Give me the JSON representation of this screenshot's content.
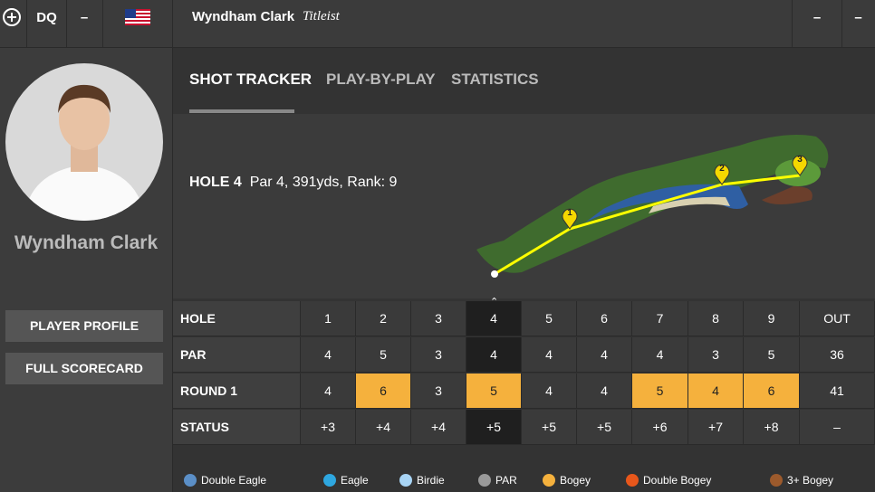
{
  "top_bar": {
    "position": "DQ",
    "score": "–",
    "player": "Wyndham Clark",
    "sponsor": "Titleist",
    "right_1": "–",
    "right_2": "–"
  },
  "player": {
    "name": "Wyndham Clark",
    "buttons": [
      "PLAYER PROFILE",
      "FULL SCORECARD"
    ]
  },
  "tabs": [
    "SHOT TRACKER",
    "PLAY-BY-PLAY",
    "STATISTICS"
  ],
  "hole": {
    "label": "HOLE 4",
    "info": "Par 4, 391yds, Rank: 9",
    "shots": [
      "1",
      "2",
      "3"
    ]
  },
  "scorecard": {
    "current_hole": "4",
    "rows": [
      [
        "HOLE",
        "1",
        "2",
        "3",
        "4",
        "5",
        "6",
        "7",
        "8",
        "9",
        "OUT"
      ],
      [
        "PAR",
        "4",
        "5",
        "3",
        "4",
        "4",
        "4",
        "4",
        "3",
        "5",
        "36"
      ],
      [
        "ROUND 1",
        "4",
        "6",
        "3",
        "5",
        "4",
        "4",
        "5",
        "4",
        "6",
        "41"
      ],
      [
        "STATUS",
        "+3",
        "+4",
        "+4",
        "+5",
        "+5",
        "+5",
        "+6",
        "+7",
        "+8",
        "–"
      ]
    ]
  },
  "legend": [
    {
      "name": "Double Eagle",
      "color": "#5b8fc7"
    },
    {
      "name": "Eagle",
      "color": "#2ea7e0"
    },
    {
      "name": "Birdie",
      "color": "#a8d4f5"
    },
    {
      "name": "PAR",
      "color": "#9a9a9a"
    },
    {
      "name": "Bogey",
      "color": "#f5b13d"
    },
    {
      "name": "Double Bogey",
      "color": "#e8571b"
    },
    {
      "name": "3+ Bogey",
      "color": "#9c5a2c"
    }
  ]
}
